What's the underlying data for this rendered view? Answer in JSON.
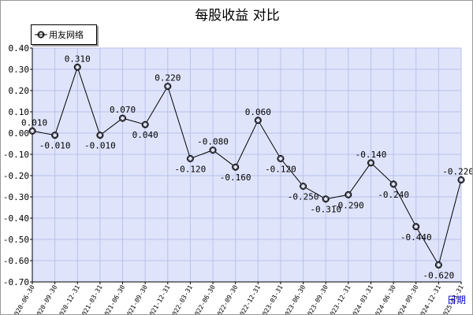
{
  "chart_data": {
    "type": "line",
    "title": "每股收益  对比",
    "xlabel": "日期",
    "ylabel": "",
    "ylim": [
      -0.7,
      0.4
    ],
    "yticks": [
      "0.40",
      "0.30",
      "0.20",
      "0.10",
      "0.00",
      "-0.10",
      "-0.20",
      "-0.30",
      "-0.40",
      "-0.50",
      "-0.60",
      "-0.70"
    ],
    "grid": true,
    "legend_position": "top-left",
    "categories": [
      "2020-06-30",
      "2020-09-30",
      "2020-12-31",
      "2021-03-31",
      "2021-06-30",
      "2021-09-30",
      "2021-12-31",
      "2022-03-31",
      "2022-06-30",
      "2022-09-30",
      "2022-12-31",
      "2023-03-31",
      "2023-06-30",
      "2023-09-30",
      "2023-12-31",
      "2024-03-31",
      "2024-06-30",
      "2024-09-30",
      "2024-12-31",
      "2025-03-31"
    ],
    "series": [
      {
        "name": "用友网络",
        "values": [
          0.01,
          -0.01,
          0.31,
          -0.01,
          0.07,
          0.04,
          0.22,
          -0.12,
          -0.08,
          -0.16,
          0.06,
          -0.12,
          -0.25,
          -0.31,
          -0.29,
          -0.14,
          -0.24,
          -0.44,
          -0.62,
          -0.22
        ],
        "labels": [
          "0.010",
          "-0.010",
          "0.310",
          "-0.010",
          "0.070",
          "0.040",
          "0.220",
          "-0.120",
          "-0.080",
          "-0.160",
          "0.060",
          "-0.120",
          "-0.250",
          "-0.310",
          "-0.290",
          "-0.140",
          "-0.240",
          "-0.440",
          "-0.620",
          "-0.220"
        ]
      }
    ]
  },
  "colors": {
    "plot_background": "#dfe4fb",
    "grid": "#b8c2ea",
    "line": "#000000",
    "xlabel": "#0000cc"
  },
  "legend_marker_icon": "diamond-circle-icon"
}
